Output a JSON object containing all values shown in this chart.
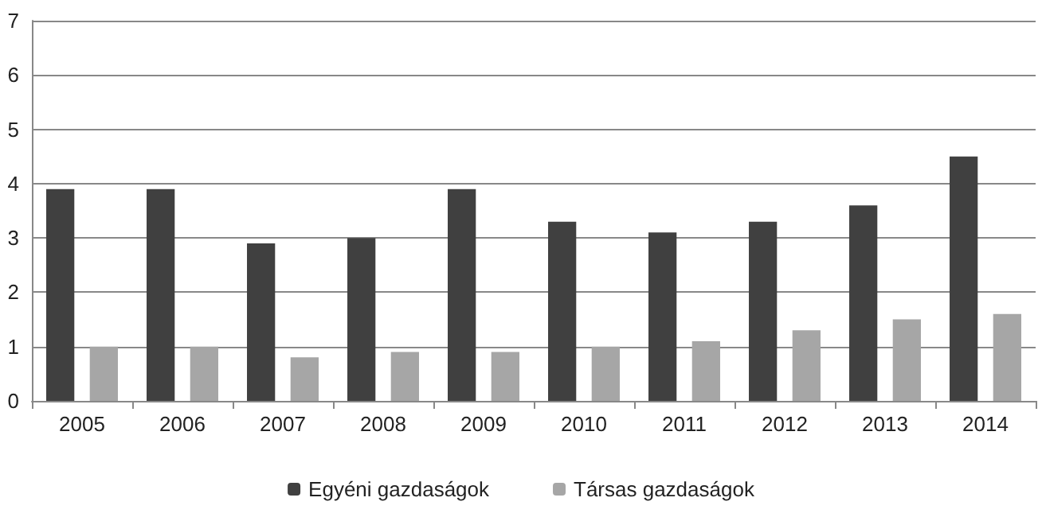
{
  "chart_data": {
    "type": "bar",
    "categories": [
      "2005",
      "2006",
      "2007",
      "2008",
      "2009",
      "2010",
      "2011",
      "2012",
      "2013",
      "2014"
    ],
    "series": [
      {
        "name": "Egyéni gazdaságok",
        "color": "#404040",
        "values": [
          3.9,
          3.9,
          2.9,
          3.0,
          3.9,
          3.3,
          3.1,
          3.3,
          3.6,
          4.5
        ]
      },
      {
        "name": "Társas gazdaságok",
        "color": "#a6a6a6",
        "values": [
          1.0,
          1.0,
          0.8,
          0.9,
          0.9,
          1.0,
          1.1,
          1.3,
          1.5,
          1.6
        ]
      }
    ],
    "ylim": [
      0,
      7
    ],
    "yticks": [
      0,
      1,
      2,
      3,
      4,
      5,
      6,
      7
    ],
    "grid": "y",
    "legend": "bottom"
  }
}
